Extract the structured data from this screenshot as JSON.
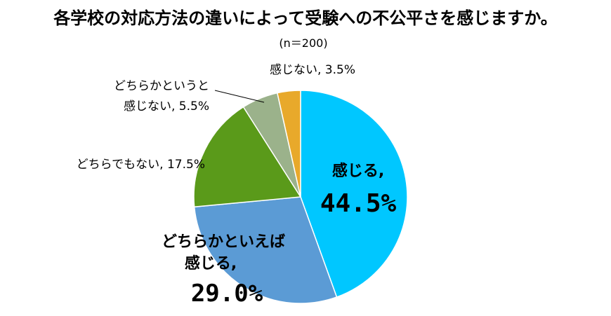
{
  "chart_data": {
    "type": "pie",
    "title": "各学校の対応方法の違いによって受験への不公平さを感じますか。",
    "subtitle": "(n＝200)",
    "slices": [
      {
        "name": "感じる",
        "value": 44.5,
        "label_lines": [
          "感じる,"
        ],
        "value_label": "44.5%",
        "color": "#00c7ff"
      },
      {
        "name": "どちらかといえば感じる",
        "value": 29.0,
        "label_lines": [
          "どちらかといえば",
          "感じる,"
        ],
        "value_label": "29.0%",
        "color": "#5b9bd5"
      },
      {
        "name": "どちらでもない",
        "value": 17.5,
        "label_lines": [
          "どちらでもない, 17.5%"
        ],
        "value_label": "",
        "color": "#5a9a1a"
      },
      {
        "name": "どちらかというと感じない",
        "value": 5.5,
        "label_lines": [
          "どちらかというと",
          "感じない, 5.5%"
        ],
        "value_label": "",
        "color": "#9bb28b"
      },
      {
        "name": "感じない",
        "value": 3.5,
        "label_lines": [
          "感じない, 3.5%"
        ],
        "value_label": "",
        "color": "#e8a92b"
      }
    ]
  }
}
